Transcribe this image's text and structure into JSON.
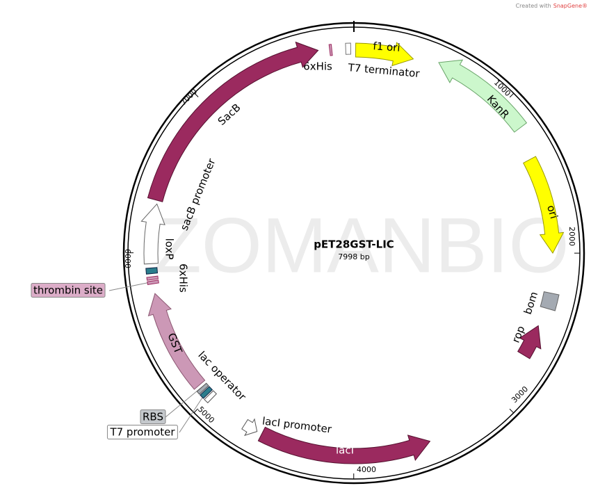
{
  "title": "pET28GST-LIC",
  "size": {
    "value": 7998,
    "label": "7998 bp"
  },
  "watermark": "ZOMANBIO",
  "credit": {
    "prefix": "Created with",
    "brand": "SnapGene®"
  },
  "ticks": [
    1000,
    2000,
    3000,
    4000,
    5000,
    6000,
    7000
  ],
  "features": [
    {
      "label": "f1 ori"
    },
    {
      "label": "T7 terminator"
    },
    {
      "label": "6xHis"
    },
    {
      "label": "KanR"
    },
    {
      "label": "ori"
    },
    {
      "label": "bom"
    },
    {
      "label": "rop"
    },
    {
      "label": "lacI"
    },
    {
      "label": "lacI promoter"
    },
    {
      "label": "lac operator"
    },
    {
      "label": "RBS"
    },
    {
      "label": "T7 promoter"
    },
    {
      "label": "GST"
    },
    {
      "label": "thrombin site"
    },
    {
      "label": "6xHis"
    },
    {
      "label": "loxP"
    },
    {
      "label": "sacB promoter"
    },
    {
      "label": "SacB"
    }
  ]
}
